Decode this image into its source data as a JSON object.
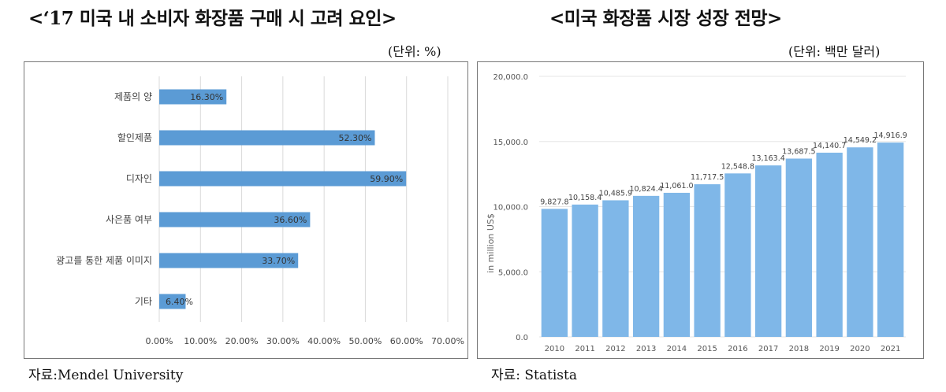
{
  "left": {
    "title": "<‘17 미국 내 소비자 화장품 구매 시 고려 요인>",
    "unit": "(단위: %)",
    "source": "자료:Mendel University"
  },
  "right": {
    "title": "<미국 화장품 시장 성장 전망>",
    "unit": "(단위: 백만 달러)",
    "source": "자료: Statista"
  },
  "chart_data": [
    {
      "type": "bar",
      "orientation": "horizontal",
      "categories": [
        "제품의 양",
        "할인제품",
        "디자인",
        "사은품 여부",
        "광고를 통한 제품 이미지",
        "기타"
      ],
      "values": [
        16.3,
        52.3,
        59.9,
        36.6,
        33.7,
        6.4
      ],
      "value_labels": [
        "16.30%",
        "52.30%",
        "59.90%",
        "36.60%",
        "33.70%",
        "6.40%"
      ],
      "xlim": [
        0,
        70
      ],
      "x_ticks": [
        "0.00%",
        "10.00%",
        "20.00%",
        "30.00%",
        "40.00%",
        "50.00%",
        "60.00%",
        "70.00%"
      ],
      "grid": true,
      "bar_color": "#5b9bd5"
    },
    {
      "type": "bar",
      "categories": [
        "2010",
        "2011",
        "2012",
        "2013",
        "2014",
        "2015",
        "2016",
        "2017",
        "2018",
        "2019",
        "2020",
        "2021"
      ],
      "values": [
        9827.8,
        10158.4,
        10485.9,
        10824.4,
        11061.0,
        11717.5,
        12548.8,
        13163.4,
        13687.5,
        14140.7,
        14549.2,
        14916.9
      ],
      "value_labels": [
        "9,827.8",
        "10,158.4",
        "10,485.9",
        "10,824.4",
        "11,061.0",
        "11,717.5",
        "12,548.8",
        "13,163.4",
        "13,687.5",
        "14,140.7",
        "14,549.2",
        "14,916.9"
      ],
      "ylabel": "in million US$",
      "ylim": [
        0,
        20000
      ],
      "y_ticks": [
        "0.0",
        "5,000.0",
        "10,000.0",
        "15,000.0",
        "20,000.0"
      ],
      "grid": true,
      "bar_color": "#7fb7e8"
    }
  ]
}
